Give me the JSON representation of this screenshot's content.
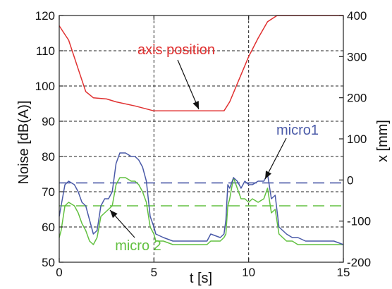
{
  "chart_data": {
    "type": "line",
    "xlabel": "t [s]",
    "ylabel": "Noise [dB(A)]",
    "y2label": "x [mm]",
    "xlim": [
      0,
      15
    ],
    "ylim": [
      50,
      120
    ],
    "y2lim": [
      -200,
      400
    ],
    "xticks": [
      "0",
      "5",
      "10",
      "15"
    ],
    "yticks": [
      "50",
      "60",
      "70",
      "80",
      "90",
      "100",
      "110",
      "120"
    ],
    "y2ticks": [
      "-200",
      "-100",
      "0",
      "100",
      "200",
      "300",
      "400"
    ],
    "grid": true,
    "colors": {
      "axis_position": "#e03030",
      "micro1": "#4a5aa8",
      "micro2": "#62c040",
      "micro1_ref": "#3a4aa0",
      "micro2_ref": "#62c040"
    },
    "annotations": [
      {
        "text": "axis position",
        "series": "axis position",
        "color": "#e03030"
      },
      {
        "text": "micro1",
        "series": "micro1",
        "color": "#4a5aa8"
      },
      {
        "text": "micro 2",
        "series": "micro2",
        "color": "#62c040"
      }
    ],
    "reference_lines": [
      {
        "series": "micro1",
        "y": 72.5,
        "style": "dashed"
      },
      {
        "series": "micro2",
        "y": 66,
        "style": "dashed"
      }
    ],
    "series": [
      {
        "name": "axis position",
        "axis": "right",
        "x": [
          0,
          0.5,
          1,
          1.4,
          1.8,
          2.5,
          3,
          4,
          5,
          6,
          7,
          8,
          8.7,
          9,
          9.5,
          10,
          10.5,
          11,
          11.5,
          12,
          13,
          14,
          15
        ],
        "values": [
          375,
          340,
          270,
          215,
          200,
          197,
          190,
          180,
          168,
          168,
          168,
          168,
          168,
          190,
          245,
          300,
          345,
          385,
          400,
          400,
          400,
          400,
          400
        ]
      },
      {
        "name": "micro1",
        "axis": "left",
        "x": [
          0,
          0.1,
          0.3,
          0.5,
          0.8,
          1.0,
          1.2,
          1.4,
          1.6,
          1.8,
          2.0,
          2.2,
          2.4,
          2.6,
          2.8,
          3.0,
          3.2,
          3.5,
          3.8,
          4.0,
          4.2,
          4.4,
          4.6,
          4.8,
          5.0,
          5.1,
          5.5,
          6,
          6.5,
          7,
          7.5,
          7.8,
          8.0,
          8.5,
          8.7,
          8.8,
          8.9,
          9.0,
          9.2,
          9.4,
          9.6,
          9.8,
          10.0,
          10.2,
          10.5,
          10.8,
          11.0,
          11.2,
          11.4,
          11.6,
          11.8,
          12.0,
          12.3,
          12.6,
          13,
          13.5,
          14,
          14.5,
          15
        ],
        "values": [
          63,
          66,
          72,
          73,
          72,
          70,
          67,
          66,
          62,
          58,
          59,
          66,
          68,
          68,
          70,
          78,
          81,
          81,
          80,
          80,
          79,
          77,
          73,
          63,
          60,
          58,
          57,
          56,
          56,
          56,
          56,
          56,
          58,
          57,
          58,
          62,
          72,
          71,
          74,
          73,
          71,
          73,
          72,
          72,
          73,
          73,
          75,
          68,
          69,
          60,
          59,
          58,
          57,
          57,
          56,
          56,
          56,
          56,
          55
        ]
      },
      {
        "name": "micro2",
        "axis": "left",
        "x": [
          0,
          0.1,
          0.3,
          0.5,
          0.8,
          1.0,
          1.2,
          1.4,
          1.6,
          1.8,
          2.0,
          2.2,
          2.4,
          2.6,
          2.8,
          3.0,
          3.2,
          3.5,
          3.8,
          4.0,
          4.2,
          4.4,
          4.6,
          4.8,
          5.0,
          5.1,
          5.5,
          6,
          6.5,
          7,
          7.5,
          7.8,
          8.0,
          8.5,
          8.7,
          8.8,
          8.9,
          9.0,
          9.2,
          9.4,
          9.6,
          9.8,
          10.0,
          10.2,
          10.5,
          10.8,
          11.0,
          11.2,
          11.4,
          11.6,
          11.8,
          12.0,
          12.3,
          12.6,
          13,
          13.5,
          14,
          14.5,
          15
        ],
        "values": [
          57,
          59,
          66,
          67,
          66,
          64,
          61,
          59,
          56,
          55,
          57,
          63,
          64,
          65,
          66,
          72,
          74,
          74,
          73,
          73,
          72,
          70,
          67,
          60,
          58,
          56,
          56,
          55,
          55,
          55,
          55,
          55,
          56,
          56,
          57,
          58,
          66,
          68,
          74,
          71,
          68,
          68,
          67,
          68,
          67,
          68,
          71,
          64,
          65,
          58,
          57,
          56,
          56,
          55,
          55,
          55,
          55,
          55,
          55
        ]
      }
    ]
  }
}
